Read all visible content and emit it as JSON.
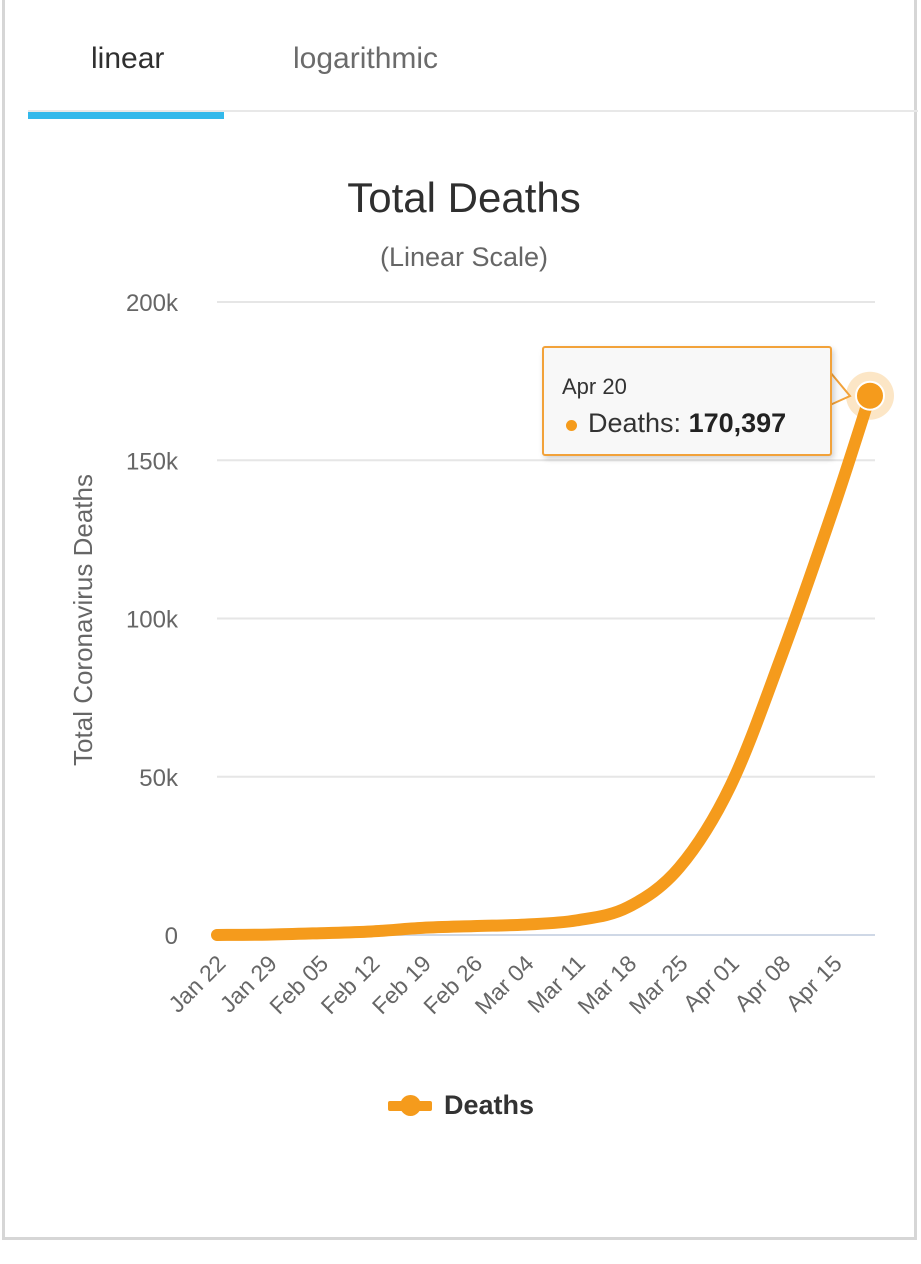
{
  "tabs": {
    "linear_label": "linear",
    "log_label": "logarithmic",
    "active": "linear"
  },
  "tooltip": {
    "date": "Apr 20",
    "series_label": "Deaths: ",
    "value": "170,397"
  },
  "legend": {
    "label": "Deaths"
  },
  "colors": {
    "series": "#f59b1c",
    "tab_active": "#33b9eb",
    "grid": "#e6e6e6"
  },
  "chart_data": {
    "type": "line",
    "title": "Total Deaths",
    "subtitle": "(Linear Scale)",
    "ylabel": "Total Coronavirus Deaths",
    "xlabel": "",
    "ylim": [
      0,
      200000
    ],
    "yticks": [
      0,
      50000,
      100000,
      150000,
      200000
    ],
    "ytick_labels": [
      "0",
      "50k",
      "100k",
      "150k",
      "200k"
    ],
    "x_tick_labels": [
      "Jan 22",
      "Jan 29",
      "Feb 05",
      "Feb 12",
      "Feb 19",
      "Feb 26",
      "Mar 04",
      "Mar 11",
      "Mar 18",
      "Mar 25",
      "Apr 01",
      "Apr 08",
      "Apr 15"
    ],
    "series": [
      {
        "name": "Deaths",
        "x": [
          0,
          7,
          14,
          21,
          28,
          35,
          42,
          49,
          56,
          63,
          70,
          77,
          84,
          89
        ],
        "values": [
          17,
          133,
          565,
          1113,
          2247,
          2804,
          3285,
          4617,
          8783,
          21283,
          47208,
          88505,
          134615,
          170397
        ]
      }
    ],
    "highlight": {
      "x": 89,
      "value": 170397,
      "label": "Apr 20"
    },
    "x_range": [
      0,
      89
    ],
    "legend_position": "bottom-center"
  }
}
